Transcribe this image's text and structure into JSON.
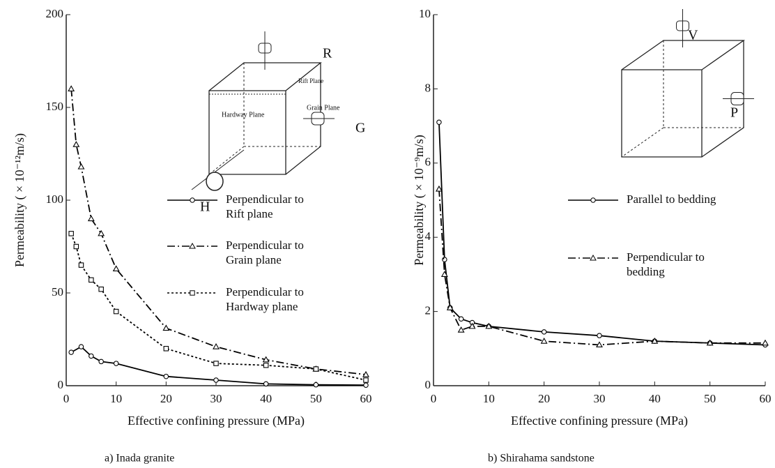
{
  "chart_data": [
    {
      "type": "line",
      "caption": "a) Inada granite",
      "x_label": "Effective confining pressure (MPa)",
      "y_label": "Permeability ( × 10⁻¹²m/s)",
      "xlim": [
        0,
        60
      ],
      "xticks": [
        0,
        10,
        20,
        30,
        40,
        50,
        60
      ],
      "ylim": [
        0,
        200
      ],
      "yticks": [
        0,
        50,
        100,
        150,
        200
      ],
      "annotations": [
        "R",
        "Rift Plane",
        "Hardway Plane",
        "Grain Plane",
        "G",
        "H"
      ],
      "series": [
        {
          "name": "Perpendicular to Rift plane",
          "color": "#000000",
          "linestyle": "solid",
          "marker": "circle",
          "x": [
            1,
            3,
            5,
            7,
            10,
            20,
            30,
            40,
            50,
            60
          ],
          "values": [
            18,
            21,
            16,
            13,
            12,
            5,
            3,
            1,
            0.5,
            0.3
          ]
        },
        {
          "name": "Perpendicular to Grain plane",
          "color": "#000000",
          "linestyle": "dashdot",
          "marker": "triangle",
          "x": [
            1,
            2,
            3,
            5,
            7,
            10,
            20,
            30,
            40,
            50,
            60
          ],
          "values": [
            160,
            130,
            118,
            90,
            82,
            63,
            31,
            21,
            14,
            9,
            6
          ]
        },
        {
          "name": "Perpendicular to Hardway plane",
          "color": "#000000",
          "linestyle": "dotted",
          "marker": "square",
          "x": [
            1,
            2,
            3,
            5,
            7,
            10,
            20,
            30,
            40,
            50,
            60
          ],
          "values": [
            82,
            75,
            65,
            57,
            52,
            40,
            20,
            12,
            11,
            9,
            3
          ]
        }
      ]
    },
    {
      "type": "line",
      "caption": "b) Shirahama sandstone",
      "x_label": "Effective confining pressure (MPa)",
      "y_label": "Permeability ( × 10⁻⁹m/s)",
      "xlim": [
        0,
        60
      ],
      "xticks": [
        0,
        10,
        20,
        30,
        40,
        50,
        60
      ],
      "ylim": [
        0,
        10
      ],
      "yticks": [
        0,
        2,
        4,
        6,
        8,
        10
      ],
      "annotations": [
        "V",
        "P"
      ],
      "series": [
        {
          "name": "Parallel to bedding",
          "color": "#000000",
          "linestyle": "solid",
          "marker": "circle",
          "x": [
            1,
            2,
            3,
            5,
            7,
            10,
            20,
            30,
            40,
            50,
            60
          ],
          "values": [
            7.1,
            3.4,
            2.1,
            1.8,
            1.7,
            1.6,
            1.45,
            1.35,
            1.2,
            1.15,
            1.1
          ]
        },
        {
          "name": "Perpendicular to bedding",
          "color": "#000000",
          "linestyle": "dashdot",
          "marker": "triangle",
          "x": [
            1,
            2,
            3,
            5,
            7,
            10,
            20,
            30,
            40,
            50,
            60
          ],
          "values": [
            5.3,
            3.0,
            2.1,
            1.5,
            1.6,
            1.6,
            1.2,
            1.1,
            1.2,
            1.15,
            1.15
          ]
        }
      ]
    }
  ]
}
